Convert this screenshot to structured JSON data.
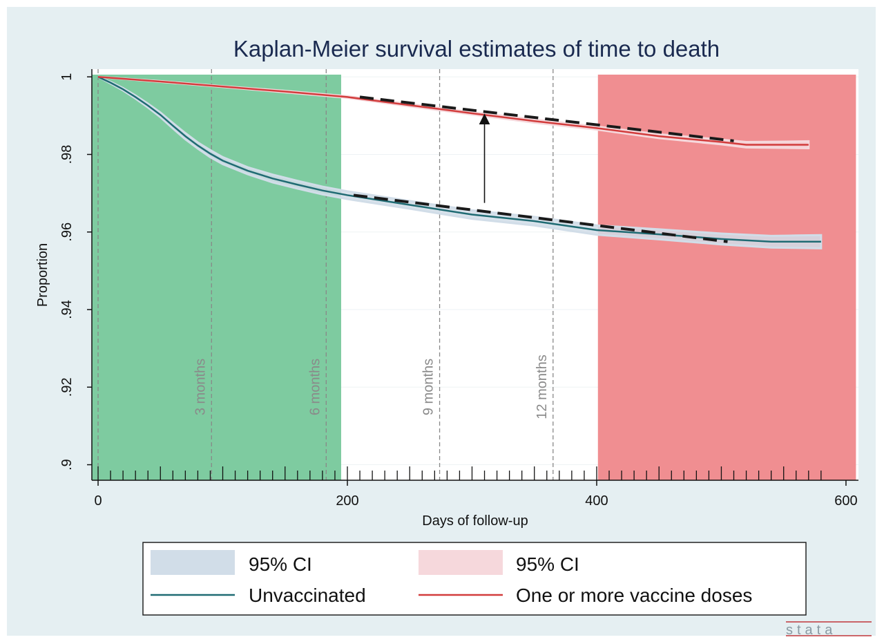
{
  "colors": {
    "background": "#e5eff2",
    "plot_background": "#ffffff",
    "early_region": "#7ecba0",
    "late_region": "#f08e91",
    "unvaccinated_line": "#1f6b73",
    "unvaccinated_ci": "#d1dde8",
    "vaccinated_line": "#d23c3c",
    "vaccinated_ci": "#f6d8dc",
    "trend_dash": "#1a1a1a",
    "month_line": "#888888"
  },
  "watermark": "stata",
  "chart_data": {
    "type": "line",
    "title": "Kaplan-Meier survival estimates of time to death",
    "xlabel": "Days of follow-up",
    "ylabel": "Proportion",
    "xlim": [
      -5,
      610
    ],
    "ylim": [
      0.896,
      1.002
    ],
    "x_ticks": [
      0,
      200,
      400,
      600
    ],
    "x_tick_labels": [
      "0",
      "200",
      "400",
      "600"
    ],
    "y_ticks": [
      0.9,
      0.92,
      0.94,
      0.96,
      0.98,
      1
    ],
    "y_tick_labels": [
      ".9",
      ".92",
      ".94",
      ".96",
      ".98",
      "1"
    ],
    "grid": true,
    "legend_position": "bottom",
    "shaded_regions": [
      {
        "x0": -5,
        "x1": 195,
        "color": "#7ecba0"
      },
      {
        "x0": 401,
        "x1": 608,
        "color": "#f08e91"
      }
    ],
    "reference_lines": [
      {
        "x": 0,
        "label": ""
      },
      {
        "x": 91,
        "label": "3 months"
      },
      {
        "x": 183,
        "label": "6 months"
      },
      {
        "x": 274,
        "label": "9 months"
      },
      {
        "x": 365,
        "label": "12 months"
      }
    ],
    "series": [
      {
        "name": "Unvaccinated",
        "ci_name": "95% CI",
        "x": [
          0,
          10,
          20,
          30,
          40,
          50,
          60,
          70,
          80,
          90,
          100,
          120,
          140,
          160,
          180,
          200,
          250,
          300,
          350,
          400,
          450,
          500,
          540,
          560,
          580
        ],
        "y": [
          1.0,
          0.9985,
          0.9968,
          0.9948,
          0.9926,
          0.9902,
          0.9874,
          0.9847,
          0.9823,
          0.9802,
          0.9784,
          0.9758,
          0.9738,
          0.9722,
          0.9707,
          0.9695,
          0.967,
          0.9645,
          0.9628,
          0.9605,
          0.9594,
          0.9582,
          0.9575,
          0.9575,
          0.9575
        ],
        "ci_width": [
          0,
          0.0002,
          0.0003,
          0.0004,
          0.0005,
          0.0006,
          0.0007,
          0.0008,
          0.0008,
          0.0009,
          0.0009,
          0.0009,
          0.001,
          0.001,
          0.001,
          0.001,
          0.001,
          0.0011,
          0.0011,
          0.0012,
          0.0013,
          0.0014,
          0.0015,
          0.0016,
          0.0017
        ]
      },
      {
        "name": "One or more vaccine doses",
        "ci_name": "95% CI",
        "x": [
          0,
          50,
          100,
          150,
          200,
          250,
          300,
          350,
          400,
          450,
          500,
          520,
          550,
          570
        ],
        "y": [
          1.0,
          0.9988,
          0.9975,
          0.9962,
          0.9948,
          0.9927,
          0.9906,
          0.9886,
          0.9868,
          0.9847,
          0.9832,
          0.9825,
          0.9825,
          0.9825
        ],
        "ci_width": [
          0,
          0.0001,
          0.0001,
          0.0002,
          0.0002,
          0.0003,
          0.0003,
          0.0004,
          0.0004,
          0.0005,
          0.0006,
          0.0007,
          0.0008,
          0.0009
        ]
      }
    ],
    "trend_lines": [
      {
        "x": [
          210,
          510
        ],
        "y": [
          0.9948,
          0.9835
        ]
      },
      {
        "x": [
          205,
          505
        ],
        "y": [
          0.9695,
          0.9575
        ]
      }
    ],
    "annotations": [
      {
        "type": "arrow",
        "x": 310,
        "y_from": 0.9675,
        "y_to": 0.9902
      }
    ],
    "legend": {
      "ci_left": "95% CI",
      "ci_right": "95% CI",
      "line_left": "Unvaccinated",
      "line_right": "One or more vaccine doses"
    }
  }
}
